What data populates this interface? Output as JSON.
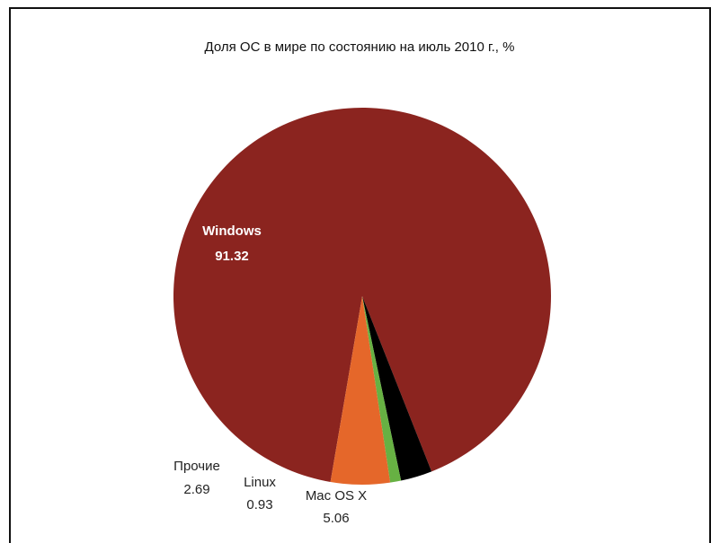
{
  "chart_data": {
    "type": "pie",
    "title": "Доля ОС в мире по состоянию на июль 2010 г., %",
    "slices": [
      {
        "label": "Windows",
        "value_text": "91.32",
        "value": 91.32,
        "color": "#8b241f"
      },
      {
        "label": "Mac OS X",
        "value_text": "5.06",
        "value": 5.06,
        "color": "#e5672a"
      },
      {
        "label": "Linux",
        "value_text": "0.93",
        "value": 0.93,
        "color": "#67b143"
      },
      {
        "label": "Прочие",
        "value_text": "2.69",
        "value": 2.69,
        "color": "#000000"
      }
    ]
  }
}
